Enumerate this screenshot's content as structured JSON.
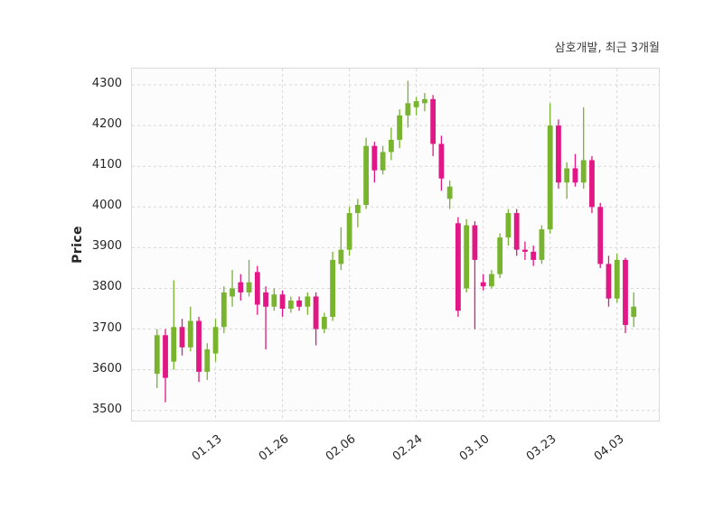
{
  "figure": {
    "title": "삼호개발, 최근 3개월",
    "ylabel": "Price"
  },
  "chart_data": {
    "type": "candlestick",
    "title": "삼호개발, 최근 3개월",
    "xlabel": "",
    "ylabel": "Price",
    "grid": "dashed",
    "legend": "none",
    "ylim": [
      3475,
      4340
    ],
    "x_range": [
      -3,
      60
    ],
    "yticks": [
      3500,
      3600,
      3700,
      3800,
      3900,
      4000,
      4100,
      4200,
      4300
    ],
    "xticks": [
      {
        "label": "01.13",
        "index": 7
      },
      {
        "label": "01.26",
        "index": 15
      },
      {
        "label": "02.06",
        "index": 23
      },
      {
        "label": "02.24",
        "index": 31
      },
      {
        "label": "03.10",
        "index": 39
      },
      {
        "label": "03.23",
        "index": 47
      },
      {
        "label": "04.03",
        "index": 55
      }
    ],
    "style": {
      "up_color": "#78b42d",
      "down_color": "#e01784",
      "grid_color": "#d8d8d8",
      "plot_border_color": "#d9d9de"
    },
    "candles_format": [
      "open",
      "high",
      "low",
      "close"
    ],
    "candles": [
      [
        3590,
        3700,
        3555,
        3685
      ],
      [
        3685,
        3700,
        3520,
        3580
      ],
      [
        3620,
        3820,
        3600,
        3705
      ],
      [
        3705,
        3725,
        3635,
        3655
      ],
      [
        3655,
        3755,
        3645,
        3720
      ],
      [
        3720,
        3730,
        3570,
        3595
      ],
      [
        3595,
        3665,
        3575,
        3650
      ],
      [
        3640,
        3725,
        3620,
        3705
      ],
      [
        3705,
        3805,
        3690,
        3790
      ],
      [
        3780,
        3845,
        3755,
        3800
      ],
      [
        3815,
        3835,
        3770,
        3790
      ],
      [
        3790,
        3870,
        3780,
        3815
      ],
      [
        3840,
        3855,
        3735,
        3760
      ],
      [
        3790,
        3805,
        3650,
        3755
      ],
      [
        3755,
        3800,
        3745,
        3785
      ],
      [
        3785,
        3795,
        3730,
        3750
      ],
      [
        3750,
        3780,
        3740,
        3770
      ],
      [
        3770,
        3780,
        3745,
        3755
      ],
      [
        3755,
        3790,
        3735,
        3780
      ],
      [
        3780,
        3790,
        3660,
        3700
      ],
      [
        3700,
        3740,
        3690,
        3730
      ],
      [
        3730,
        3890,
        3720,
        3870
      ],
      [
        3860,
        3950,
        3845,
        3895
      ],
      [
        3895,
        4000,
        3880,
        3985
      ],
      [
        3985,
        4020,
        3950,
        4005
      ],
      [
        4005,
        4170,
        3995,
        4150
      ],
      [
        4150,
        4160,
        4060,
        4090
      ],
      [
        4090,
        4150,
        4080,
        4135
      ],
      [
        4135,
        4195,
        4115,
        4165
      ],
      [
        4165,
        4240,
        4145,
        4225
      ],
      [
        4225,
        4310,
        4195,
        4255
      ],
      [
        4245,
        4270,
        4225,
        4260
      ],
      [
        4255,
        4280,
        4235,
        4265
      ],
      [
        4265,
        4275,
        4125,
        4155
      ],
      [
        4155,
        4175,
        4040,
        4070
      ],
      [
        4020,
        4065,
        3995,
        4050
      ],
      [
        3960,
        3975,
        3730,
        3745
      ],
      [
        3800,
        3970,
        3790,
        3955
      ],
      [
        3955,
        3965,
        3700,
        3870
      ],
      [
        3815,
        3835,
        3795,
        3805
      ],
      [
        3805,
        3845,
        3800,
        3835
      ],
      [
        3835,
        3935,
        3825,
        3925
      ],
      [
        3925,
        3995,
        3905,
        3985
      ],
      [
        3985,
        3995,
        3880,
        3895
      ],
      [
        3895,
        3915,
        3870,
        3890
      ],
      [
        3890,
        3905,
        3855,
        3870
      ],
      [
        3870,
        3955,
        3860,
        3945
      ],
      [
        3945,
        4255,
        3935,
        4200
      ],
      [
        4200,
        4215,
        4045,
        4060
      ],
      [
        4060,
        4110,
        4020,
        4095
      ],
      [
        4095,
        4130,
        4050,
        4060
      ],
      [
        4060,
        4245,
        4045,
        4115
      ],
      [
        4115,
        4125,
        3985,
        4000
      ],
      [
        4000,
        4010,
        3850,
        3860
      ],
      [
        3860,
        3880,
        3755,
        3775
      ],
      [
        3775,
        3885,
        3765,
        3870
      ],
      [
        3870,
        3875,
        3690,
        3710
      ],
      [
        3730,
        3790,
        3705,
        3755
      ]
    ]
  }
}
